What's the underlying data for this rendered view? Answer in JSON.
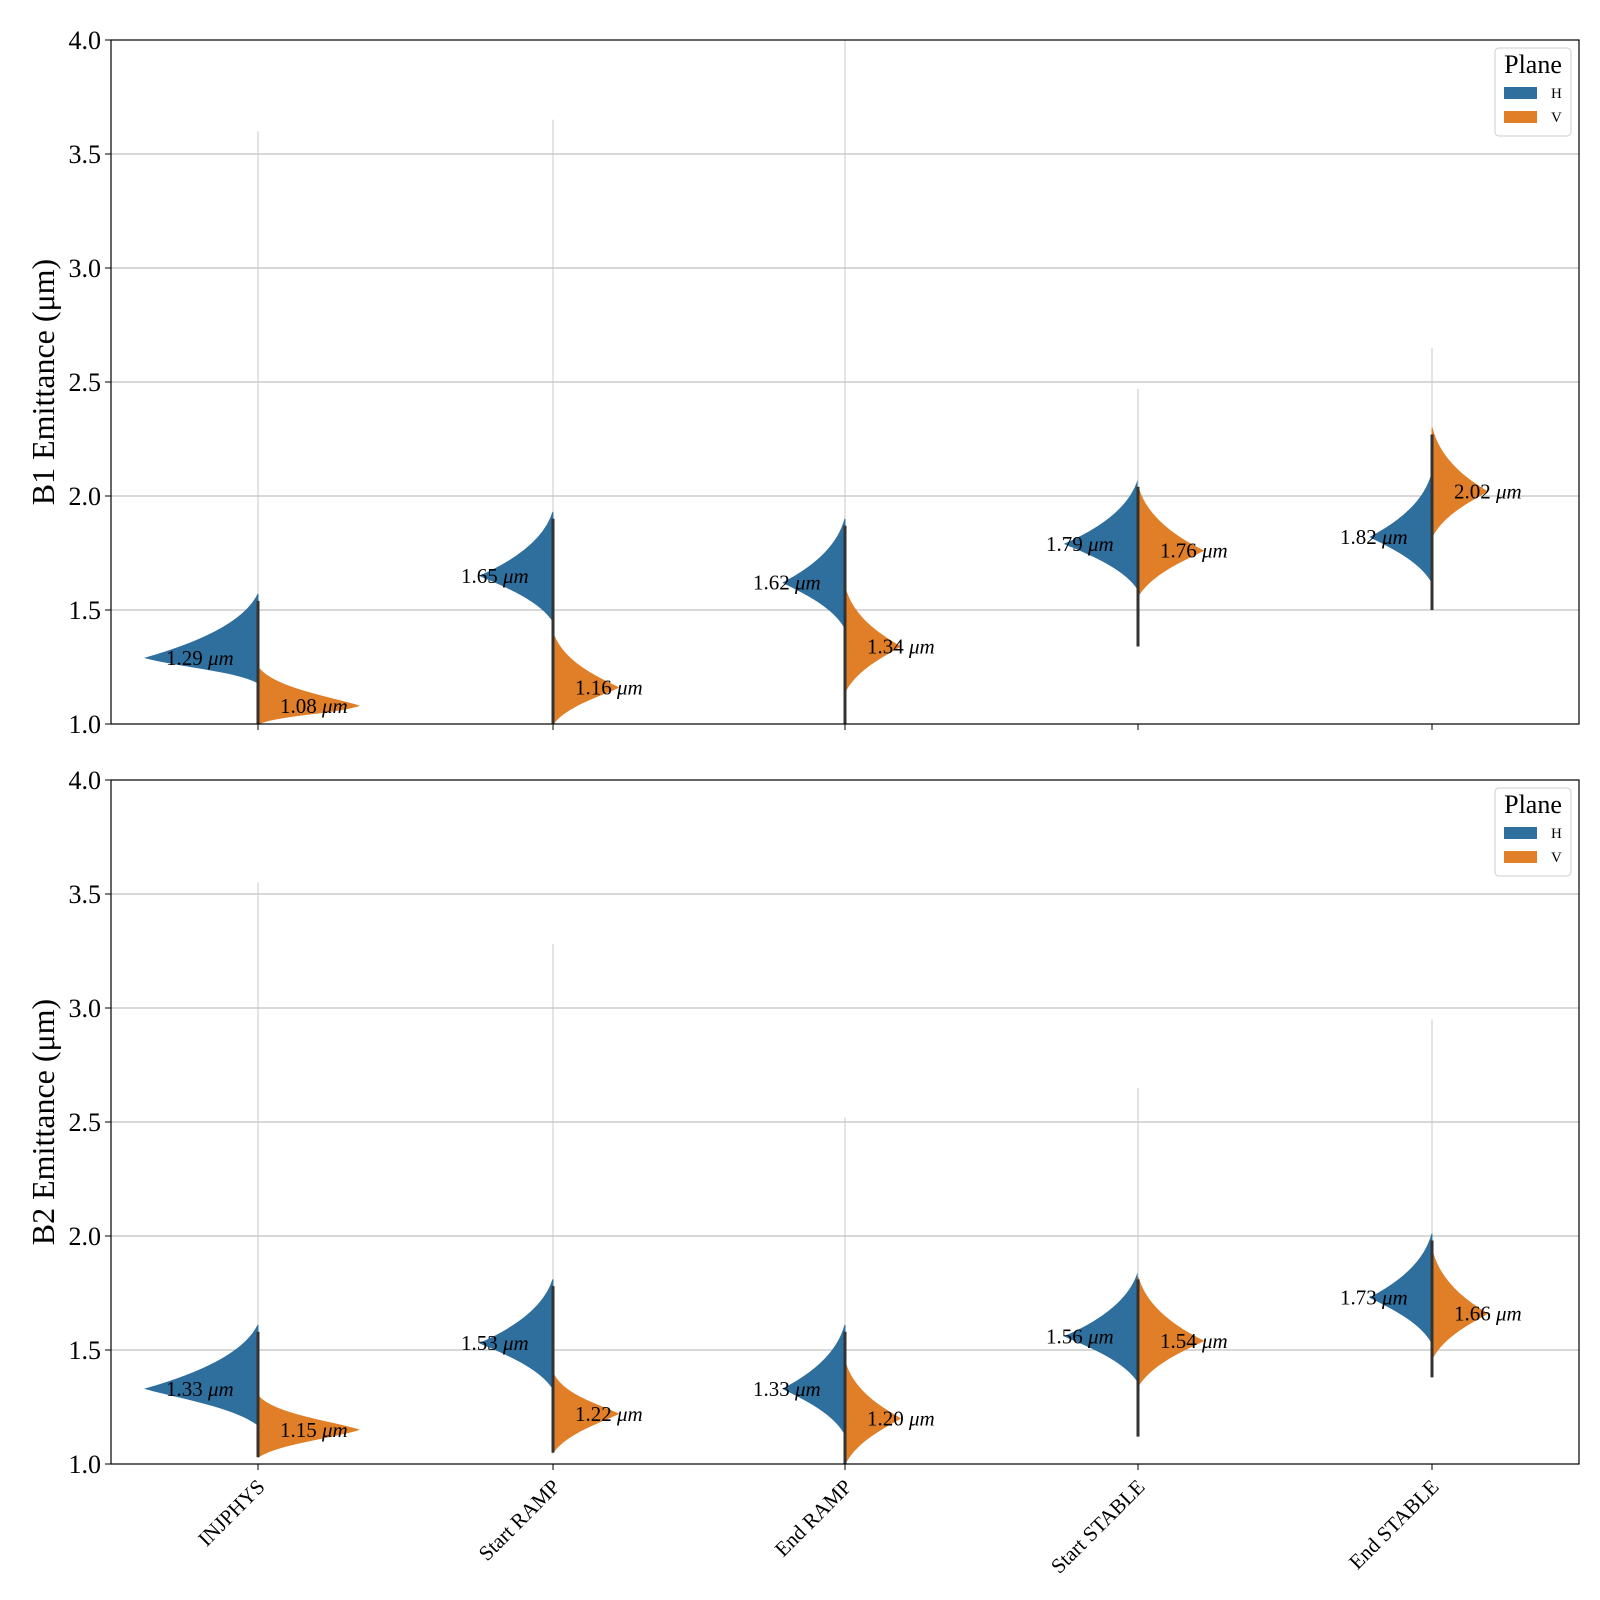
{
  "chart_data": [
    {
      "type": "violin",
      "ylabel": "B1 Emittance (μm)",
      "ylim": [
        1.0,
        4.0
      ],
      "yticks": [
        "1.0",
        "1.5",
        "2.0",
        "2.5",
        "3.0",
        "3.5",
        "4.0"
      ],
      "categories": [
        "INJPHYS",
        "Start RAMP",
        "End RAMP",
        "Start STABLE",
        "End STABLE"
      ],
      "grid": true,
      "legend": {
        "title": "Plane",
        "placement": "top-right",
        "entries": [
          "H",
          "V"
        ]
      },
      "series": [
        {
          "name": "H",
          "color": "#2e6f9e",
          "medians": [
            1.29,
            1.65,
            1.62,
            1.79,
            1.82
          ],
          "labels": [
            "1.29",
            "1.65",
            "1.62",
            "1.79",
            "1.82"
          ],
          "ranges": [
            [
              1.18,
              3.6
            ],
            [
              1.38,
              3.65
            ],
            [
              1.33,
              4.0
            ],
            [
              1.45,
              2.47
            ],
            [
              1.5,
              2.65
            ]
          ]
        },
        {
          "name": "V",
          "color": "#e07f28",
          "medians": [
            1.08,
            1.16,
            1.34,
            1.76,
            2.02
          ],
          "labels": [
            "1.08",
            "1.16",
            "1.34",
            "1.76",
            "2.02"
          ],
          "ranges": [
            [
              1.0,
              1.25
            ],
            [
              1.0,
              1.4
            ],
            [
              1.0,
              1.6
            ],
            [
              1.34,
              2.25
            ],
            [
              1.73,
              2.45
            ]
          ]
        }
      ]
    },
    {
      "type": "violin",
      "ylabel": "B2 Emittance (μm)",
      "ylim": [
        1.0,
        4.0
      ],
      "yticks": [
        "1.0",
        "1.5",
        "2.0",
        "2.5",
        "3.0",
        "3.5",
        "4.0"
      ],
      "categories": [
        "INJPHYS",
        "Start RAMP",
        "End RAMP",
        "Start STABLE",
        "End STABLE"
      ],
      "grid": true,
      "legend": {
        "title": "Plane",
        "placement": "top-right",
        "entries": [
          "H",
          "V"
        ]
      },
      "series": [
        {
          "name": "H",
          "color": "#2e6f9e",
          "medians": [
            1.33,
            1.53,
            1.33,
            1.56,
            1.73
          ],
          "labels": [
            "1.33",
            "1.53",
            "1.33",
            "1.56",
            "1.73"
          ],
          "ranges": [
            [
              1.17,
              3.55
            ],
            [
              1.25,
              3.28
            ],
            [
              1.05,
              2.52
            ],
            [
              1.12,
              2.65
            ],
            [
              1.38,
              2.95
            ]
          ]
        },
        {
          "name": "V",
          "color": "#e07f28",
          "medians": [
            1.15,
            1.22,
            1.2,
            1.54,
            1.66
          ],
          "labels": [
            "1.15",
            "1.22",
            "1.20",
            "1.54",
            "1.66"
          ],
          "ranges": [
            [
              1.03,
              1.3
            ],
            [
              1.05,
              1.4
            ],
            [
              1.0,
              1.45
            ],
            [
              1.25,
              1.85
            ],
            [
              1.4,
              1.95
            ]
          ]
        }
      ]
    }
  ],
  "unit": "μm"
}
